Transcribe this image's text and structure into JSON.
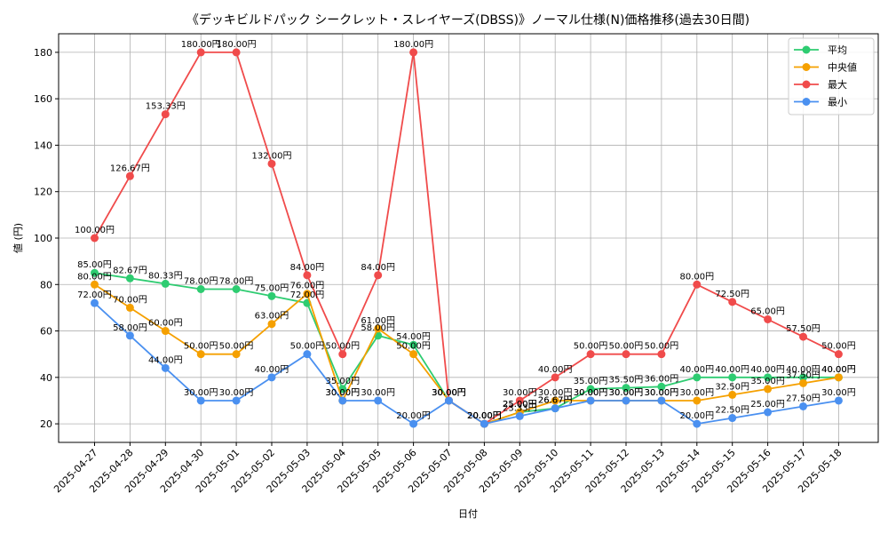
{
  "chart_data": {
    "type": "line",
    "title": "《デッキビルドパック シークレット・スレイヤーズ(DBSS)》ノーマル仕様(N)価格推移(過去30日間)",
    "xlabel": "日付",
    "ylabel": "値 (円)",
    "ylim": [
      12,
      188
    ],
    "yticks": [
      20,
      40,
      60,
      80,
      100,
      120,
      140,
      160,
      180
    ],
    "grid": true,
    "legend_position": "top-right",
    "label_suffix": "円",
    "categories": [
      "2025-04-27",
      "2025-04-28",
      "2025-04-29",
      "2025-04-30",
      "2025-05-01",
      "2025-05-02",
      "2025-05-03",
      "2025-05-04",
      "2025-05-05",
      "2025-05-06",
      "2025-05-07",
      "2025-05-08",
      "2025-05-09",
      "2025-05-10",
      "2025-05-11",
      "2025-05-12",
      "2025-05-13",
      "2025-05-14",
      "2025-05-15",
      "2025-05-16",
      "2025-05-17",
      "2025-05-18"
    ],
    "series": [
      {
        "name": "平均",
        "color": "#2ecc71",
        "values": [
          85.0,
          82.67,
          80.33,
          78.0,
          78.0,
          75.0,
          72.0,
          35.0,
          58.0,
          54.0,
          30.0,
          20.0,
          25.0,
          26.67,
          35.0,
          35.5,
          36.0,
          40.0,
          40.0,
          40.0,
          40.0,
          40.0
        ]
      },
      {
        "name": "中央値",
        "color": "#f5a000",
        "values": [
          80.0,
          70.0,
          60.0,
          50.0,
          50.0,
          63.0,
          76.0,
          30.0,
          61.0,
          50.0,
          30.0,
          20.0,
          25.0,
          30.0,
          30.0,
          30.0,
          30.0,
          30.0,
          32.5,
          35.0,
          37.5,
          40.0
        ]
      },
      {
        "name": "最大",
        "color": "#f04b4b",
        "values": [
          100.0,
          126.67,
          153.33,
          180.0,
          180.0,
          132.0,
          84.0,
          50.0,
          84.0,
          180.0,
          30.0,
          20.0,
          30.0,
          40.0,
          50.0,
          50.0,
          50.0,
          80.0,
          72.5,
          65.0,
          57.5,
          50.0
        ]
      },
      {
        "name": "最小",
        "color": "#4a90f0",
        "values": [
          72.0,
          58.0,
          44.0,
          30.0,
          30.0,
          40.0,
          50.0,
          30.0,
          30.0,
          20.0,
          30.0,
          20.0,
          23.33,
          26.67,
          30.0,
          30.0,
          30.0,
          20.0,
          22.5,
          25.0,
          27.5,
          30.0
        ]
      }
    ]
  }
}
